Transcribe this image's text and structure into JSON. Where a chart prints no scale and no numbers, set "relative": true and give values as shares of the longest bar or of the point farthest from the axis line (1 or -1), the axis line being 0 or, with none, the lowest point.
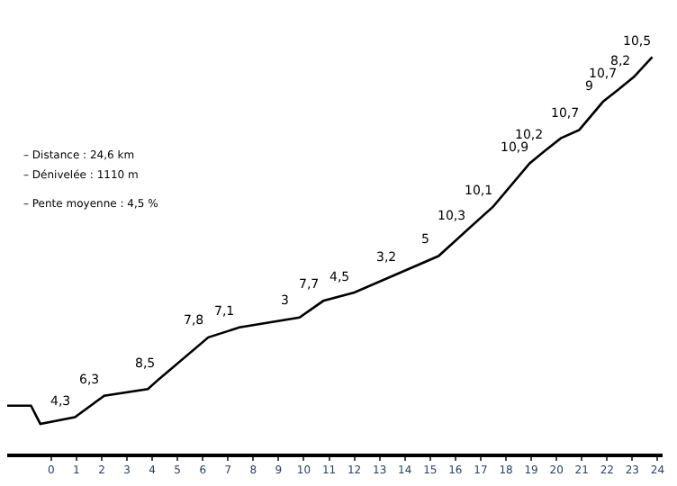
{
  "chart_data": {
    "type": "line",
    "relative": true,
    "color": "#000000",
    "marker": "none",
    "x": [
      -1.74,
      -0.8,
      -0.43,
      0.94,
      2.1,
      3.83,
      4.27,
      6.22,
      7.45,
      9.83,
      10.77,
      12.0,
      13.81,
      15.33,
      16.4,
      17.5,
      18.94,
      19.5,
      20.17,
      20.9,
      21.84,
      22.45,
      23.07,
      23.79
    ],
    "values": [
      0.121,
      0.121,
      0.075,
      0.092,
      0.146,
      0.163,
      0.188,
      0.293,
      0.318,
      0.343,
      0.385,
      0.406,
      0.456,
      0.498,
      0.56,
      0.623,
      0.732,
      0.761,
      0.795,
      0.816,
      0.887,
      0.918,
      0.95,
      1.0
    ],
    "xlim": [
      -1.74,
      24.2
    ],
    "xticks": [
      0,
      1,
      2,
      3,
      4,
      5,
      6,
      7,
      8,
      9,
      10,
      11,
      12,
      13,
      14,
      15,
      16,
      17,
      18,
      19,
      20,
      21,
      22,
      23,
      24
    ],
    "annotations": [
      "– Distance : 24,6 km",
      "– Dénivelée : 1110 m",
      "– Pente moyenne : 4,5 %",
      {
        "text": "4,3",
        "x": 0.94,
        "y": 0.092
      },
      {
        "text": "6,3",
        "x": 2.1,
        "y": 0.146
      },
      {
        "text": "8,5",
        "x": 4.27,
        "y": 0.188
      },
      {
        "text": "7,8",
        "x": 6.22,
        "y": 0.293
      },
      {
        "text": "7,1",
        "x": 7.45,
        "y": 0.318
      },
      {
        "text": "3",
        "x": 9.83,
        "y": 0.343
      },
      {
        "text": "7,7",
        "x": 10.77,
        "y": 0.385
      },
      {
        "text": "4,5",
        "x": 12.0,
        "y": 0.406
      },
      {
        "text": "3,2",
        "x": 13.81,
        "y": 0.456
      },
      {
        "text": "5",
        "x": 15.33,
        "y": 0.498
      },
      {
        "text": "10,3",
        "x": 16.4,
        "y": 0.56
      },
      {
        "text": "10,1",
        "x": 17.5,
        "y": 0.623
      },
      {
        "text": "10,9",
        "x": 18.94,
        "y": 0.732
      },
      {
        "text": "10,2",
        "x": 19.5,
        "y": 0.761
      },
      {
        "text": "10,7",
        "x": 20.9,
        "y": 0.816
      },
      {
        "text": "9",
        "x": 21.84,
        "y": 0.887
      },
      {
        "text": "10,7",
        "x": 22.45,
        "y": 0.918
      },
      {
        "text": "8,2",
        "x": 23.07,
        "y": 0.95
      },
      {
        "text": "10,5",
        "x": 23.79,
        "y": 1.0
      }
    ]
  }
}
